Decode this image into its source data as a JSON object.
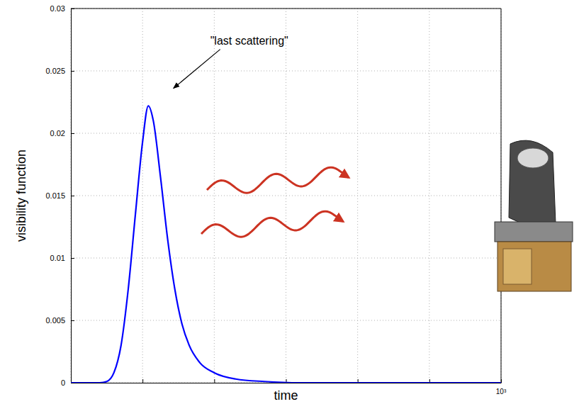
{
  "chart_data": {
    "type": "line",
    "x_label": "time",
    "y_label": "visibility function",
    "x_exponent": "10³",
    "annotations": [
      {
        "text": "\"last scattering\"",
        "x": 143,
        "y": 0.0236
      }
    ],
    "x": [
      0,
      40,
      50,
      60,
      70,
      80,
      90,
      100,
      108,
      115,
      125,
      135,
      145,
      155,
      165,
      180,
      200,
      230,
      270,
      320,
      600
    ],
    "series": [
      {
        "color": "#0000ff",
        "values": [
          0,
          0,
          0.0001,
          0.0008,
          0.003,
          0.0075,
          0.0135,
          0.0193,
          0.0222,
          0.021,
          0.0165,
          0.0115,
          0.0075,
          0.0047,
          0.003,
          0.0016,
          0.0008,
          0.0003,
          0.0001,
          0,
          0
        ]
      }
    ],
    "xlim": [
      0,
      600
    ],
    "xticks": [
      0,
      100,
      200,
      300,
      400,
      500,
      600
    ],
    "ylim": [
      0,
      0.03
    ],
    "yticks": [
      0,
      0.005,
      0.01,
      0.015,
      0.02,
      0.025,
      0.03
    ],
    "grid": true,
    "tick_labels": "y"
  }
}
